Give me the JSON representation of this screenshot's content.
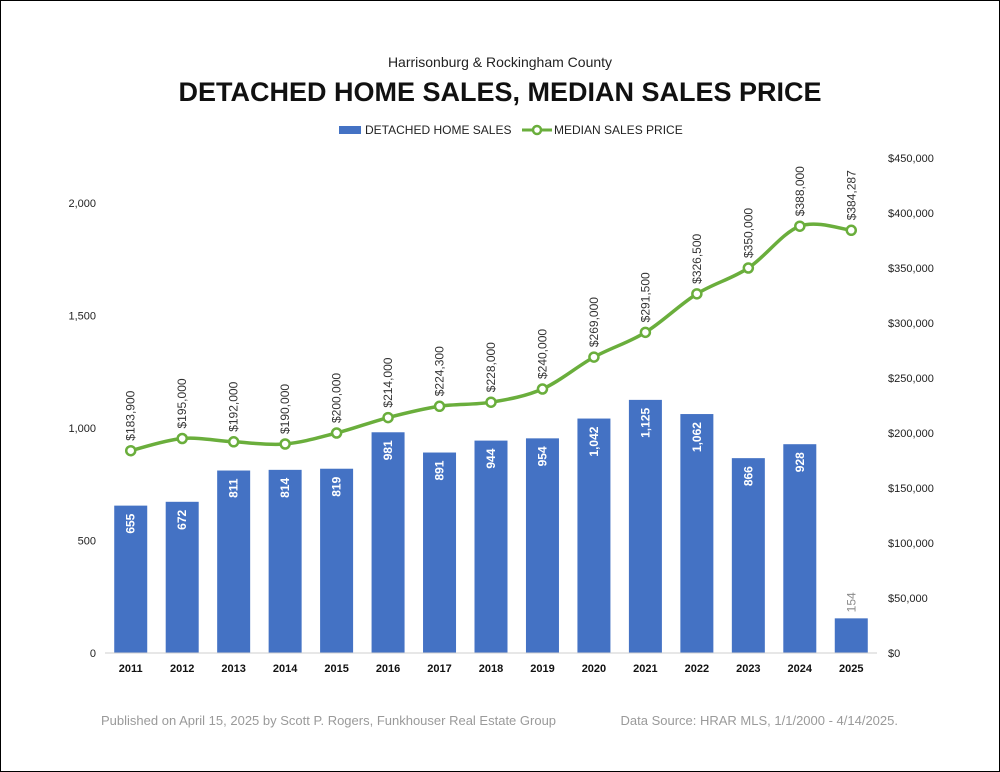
{
  "chart_data": {
    "type": "bar",
    "subtitle": "Harrisonburg & Rockingham County",
    "title": "DETACHED HOME SALES, MEDIAN SALES PRICE",
    "legend_position": "top-center",
    "categories": [
      "2011",
      "2012",
      "2013",
      "2014",
      "2015",
      "2016",
      "2017",
      "2018",
      "2019",
      "2020",
      "2021",
      "2022",
      "2023",
      "2024",
      "2025"
    ],
    "series": [
      {
        "name": "DETACHED HOME SALES",
        "type": "bar",
        "axis": "left",
        "color": "#4472C4",
        "values": [
          655,
          672,
          811,
          814,
          819,
          981,
          891,
          944,
          954,
          1042,
          1125,
          1062,
          866,
          928,
          154
        ],
        "labels": [
          "655",
          "672",
          "811",
          "814",
          "819",
          "981",
          "891",
          "944",
          "954",
          "1,042",
          "1,125",
          "1,062",
          "866",
          "928",
          "154"
        ]
      },
      {
        "name": "MEDIAN SALES PRICE",
        "type": "line",
        "axis": "right",
        "color": "#6AAE3C",
        "values": [
          183900,
          195000,
          192000,
          190000,
          200000,
          214000,
          224300,
          228000,
          240000,
          269000,
          291500,
          326500,
          350000,
          388000,
          384287
        ],
        "labels": [
          "$183,900",
          "$195,000",
          "$192,000",
          "$190,000",
          "$200,000",
          "$214,000",
          "$224,300",
          "$228,000",
          "$240,000",
          "$269,000",
          "$291,500",
          "$326,500",
          "$350,000",
          "$388,000",
          "$384,287"
        ]
      }
    ],
    "y_left": {
      "ylim": [
        0,
        2000
      ],
      "ticks": [
        0,
        500,
        1000,
        1500,
        2000
      ],
      "tick_labels": [
        "0",
        "500",
        "1,000",
        "1,500",
        "2,000"
      ]
    },
    "y_right": {
      "ylim": [
        0,
        450000
      ],
      "ticks": [
        0,
        50000,
        100000,
        150000,
        200000,
        250000,
        300000,
        350000,
        400000,
        450000
      ],
      "tick_labels": [
        "$0",
        "$50,000",
        "$100,000",
        "$150,000",
        "$200,000",
        "$250,000",
        "$300,000",
        "$350,000",
        "$400,000",
        "$450,000"
      ]
    },
    "grid": false
  },
  "footer": {
    "left": "Published on April 15, 2025 by Scott P. Rogers, Funkhouser Real Estate Group",
    "right": "Data Source: HRAR MLS, 1/1/2000 - 4/14/2025."
  }
}
